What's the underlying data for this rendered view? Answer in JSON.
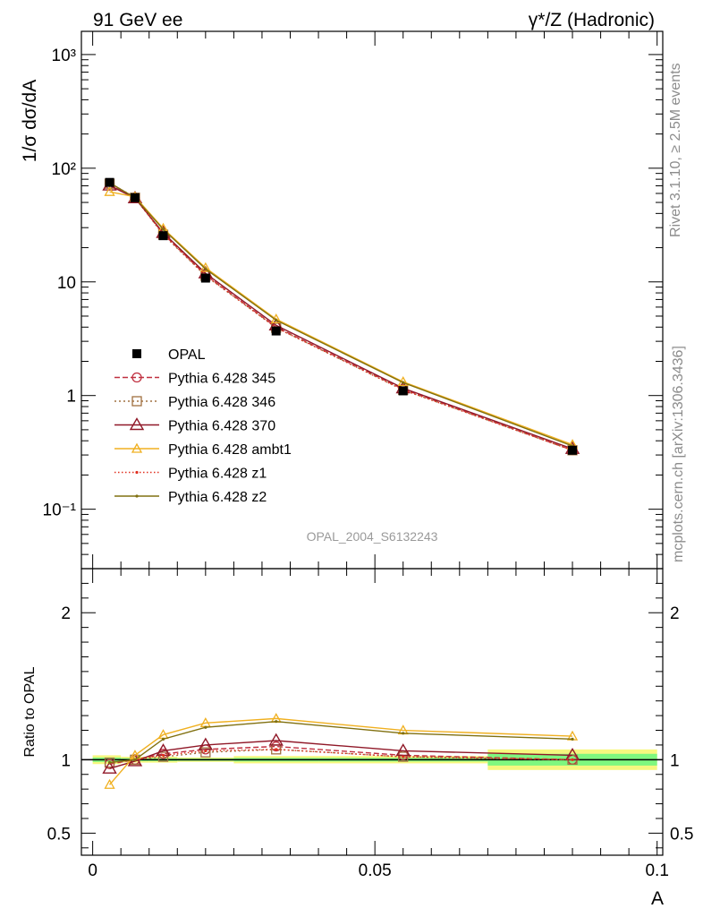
{
  "header": {
    "left_title": "91 GeV ee",
    "right_title": "γ*/Z (Hadronic)"
  },
  "side_labels": {
    "rivet": "Rivet 3.1.10, ≥ 2.5M events",
    "mcplots": "mcplots.cern.ch [arXiv:1306.3436]"
  },
  "analysis_id": "OPAL_2004_S6132243",
  "colors": {
    "data": "#000000",
    "p345": "#c03040",
    "p346": "#a07040",
    "p370": "#901828",
    "ambt1": "#f0b020",
    "z1": "#e03020",
    "z2": "#807010",
    "band_inner": "#7ff77f",
    "band_outer": "#f7f77f"
  },
  "chart_data": [
    {
      "type": "line",
      "panel": "main",
      "ylabel": "1/σ dσ/dA",
      "yscale": "log",
      "ylim": [
        0.03,
        1600
      ],
      "xlim": [
        -0.002,
        0.101
      ],
      "y_ticks": [
        {
          "value": 1000,
          "label": "10³"
        },
        {
          "value": 100,
          "label": "10²"
        },
        {
          "value": 10,
          "label": "10"
        },
        {
          "value": 1,
          "label": "1"
        },
        {
          "value": 0.1,
          "label": "10⁻¹"
        }
      ],
      "x": [
        0.003,
        0.0075,
        0.0125,
        0.02,
        0.0325,
        0.055,
        0.085
      ],
      "data_series": {
        "name": "OPAL",
        "values": [
          75,
          55,
          25.5,
          10.8,
          3.7,
          1.1,
          0.33
        ]
      },
      "series": [
        {
          "key": "p345",
          "name": "Pythia 6.428 345",
          "marker": "circle",
          "dash": "6,3",
          "values": [
            72.8,
            55.0,
            26.5,
            11.5,
            4.0,
            1.14,
            0.33
          ]
        },
        {
          "key": "p346",
          "name": "Pythia 6.428 346",
          "marker": "square",
          "dash": "2,3",
          "values": [
            73.0,
            55.0,
            26.0,
            11.3,
            3.95,
            1.12,
            0.33
          ]
        },
        {
          "key": "p370",
          "name": "Pythia 6.428 370",
          "marker": "triangle",
          "dash": "",
          "values": [
            70.5,
            54.5,
            27.0,
            11.9,
            4.15,
            1.16,
            0.34
          ]
        },
        {
          "key": "ambt1",
          "name": "Pythia 6.428 ambt1",
          "marker": "triangle-small",
          "dash": "",
          "values": [
            62.0,
            56.0,
            29.5,
            13.3,
            4.7,
            1.32,
            0.37
          ]
        },
        {
          "key": "z1",
          "name": "Pythia 6.428 z1",
          "marker": "dot",
          "dash": "1.5,2.5",
          "values": [
            74.0,
            55.5,
            26.3,
            11.4,
            3.95,
            1.12,
            0.33
          ]
        },
        {
          "key": "z2",
          "name": "Pythia 6.428 z2",
          "marker": "dot",
          "dash": "",
          "values": [
            74.5,
            55.0,
            29.0,
            13.0,
            4.6,
            1.3,
            0.36
          ]
        }
      ]
    },
    {
      "type": "line",
      "panel": "ratio",
      "ylabel": "Ratio to OPAL",
      "xlabel": "A",
      "ylim": [
        0.35,
        2.3
      ],
      "xlim": [
        -0.002,
        0.101
      ],
      "y_ticks": [
        {
          "value": 2,
          "label": "2"
        },
        {
          "value": 1,
          "label": "1"
        },
        {
          "value": 0.5,
          "label": "0.5"
        }
      ],
      "x_ticks": [
        {
          "value": 0,
          "label": "0"
        },
        {
          "value": 0.05,
          "label": "0.05"
        },
        {
          "value": 0.1,
          "label": "0.1"
        }
      ],
      "x": [
        0.003,
        0.0075,
        0.0125,
        0.02,
        0.0325,
        0.055,
        0.085
      ],
      "bands": [
        {
          "x0": 0.0,
          "x1": 0.005,
          "outer": [
            0.97,
            1.03
          ],
          "inner": [
            0.985,
            1.015
          ]
        },
        {
          "x0": 0.005,
          "x1": 0.01,
          "outer": [
            0.98,
            1.02
          ],
          "inner": [
            0.99,
            1.01
          ]
        },
        {
          "x0": 0.01,
          "x1": 0.015,
          "outer": [
            0.98,
            1.02
          ],
          "inner": [
            0.99,
            1.01
          ]
        },
        {
          "x0": 0.015,
          "x1": 0.025,
          "outer": [
            0.985,
            1.015
          ],
          "inner": [
            0.992,
            1.008
          ]
        },
        {
          "x0": 0.025,
          "x1": 0.04,
          "outer": [
            0.975,
            1.025
          ],
          "inner": [
            0.988,
            1.012
          ]
        },
        {
          "x0": 0.04,
          "x1": 0.07,
          "outer": [
            0.975,
            1.025
          ],
          "inner": [
            0.988,
            1.012
          ]
        },
        {
          "x0": 0.07,
          "x1": 0.1,
          "outer": [
            0.93,
            1.07
          ],
          "inner": [
            0.96,
            1.04
          ]
        }
      ],
      "series": [
        {
          "key": "p345",
          "values": [
            0.97,
            1.0,
            1.04,
            1.07,
            1.09,
            1.03,
            1.0
          ]
        },
        {
          "key": "p346",
          "values": [
            0.98,
            1.0,
            1.02,
            1.05,
            1.07,
            1.02,
            1.0
          ]
        },
        {
          "key": "p370",
          "values": [
            0.94,
            0.99,
            1.06,
            1.1,
            1.13,
            1.06,
            1.03
          ]
        },
        {
          "key": "ambt1",
          "values": [
            0.83,
            1.03,
            1.17,
            1.25,
            1.28,
            1.2,
            1.16
          ]
        },
        {
          "key": "z1",
          "values": [
            0.98,
            1.0,
            1.03,
            1.06,
            1.07,
            1.02,
            1.0
          ]
        },
        {
          "key": "z2",
          "values": [
            0.98,
            1.0,
            1.14,
            1.22,
            1.26,
            1.18,
            1.14
          ]
        }
      ]
    }
  ]
}
